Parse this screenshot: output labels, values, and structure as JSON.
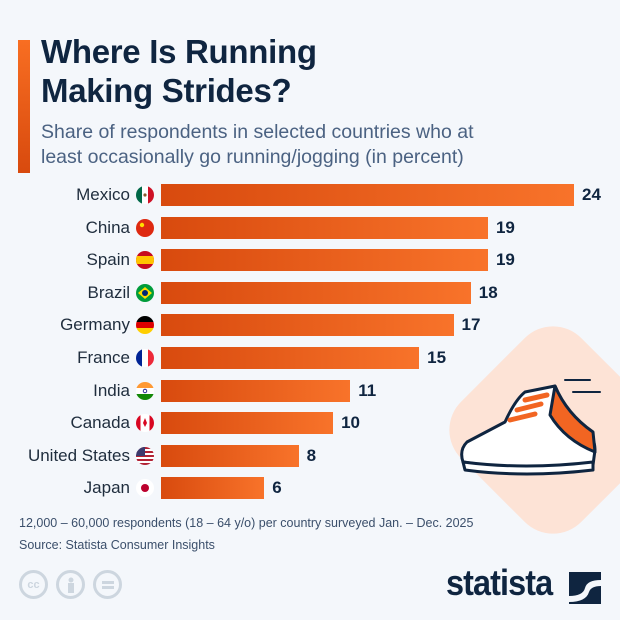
{
  "title": "Where Is Running Making Strides?",
  "title_lines": [
    "Where Is Running",
    "Making Strides?"
  ],
  "subtitle_lines": [
    "Share of respondents in selected countries who at",
    "least occasionally go running/jogging (in percent)"
  ],
  "chart_data": {
    "type": "bar",
    "orientation": "horizontal",
    "title": "Where Is Running Making Strides?",
    "subtitle": "Share of respondents in selected countries who at least occasionally go running/jogging (in percent)",
    "categories": [
      "Mexico",
      "China",
      "Spain",
      "Brazil",
      "Germany",
      "France",
      "India",
      "Canada",
      "United States",
      "Japan"
    ],
    "values": [
      24,
      19,
      19,
      18,
      17,
      15,
      11,
      10,
      8,
      6
    ],
    "xlim": [
      0,
      24
    ],
    "grid": false,
    "bar_color": "#f26522"
  },
  "flags": [
    "mexico-flag",
    "china-flag",
    "spain-flag",
    "brazil-flag",
    "germany-flag",
    "france-flag",
    "india-flag",
    "canada-flag",
    "united-states-flag",
    "japan-flag"
  ],
  "footer": {
    "note": "12,000 – 60,000 respondents (18 – 64 y/o) per country surveyed Jan. – Dec. 2025",
    "source": "Source: Statista Consumer Insights",
    "cc_icons": [
      "creative-commons-icon",
      "attribution-icon",
      "no-derivatives-icon"
    ],
    "cc_label": "cc",
    "logo": "statista"
  },
  "colors": {
    "accent": "#f26522",
    "title": "#0f2540",
    "subtitle": "#4b6282",
    "bubble": "#fde3d6"
  }
}
